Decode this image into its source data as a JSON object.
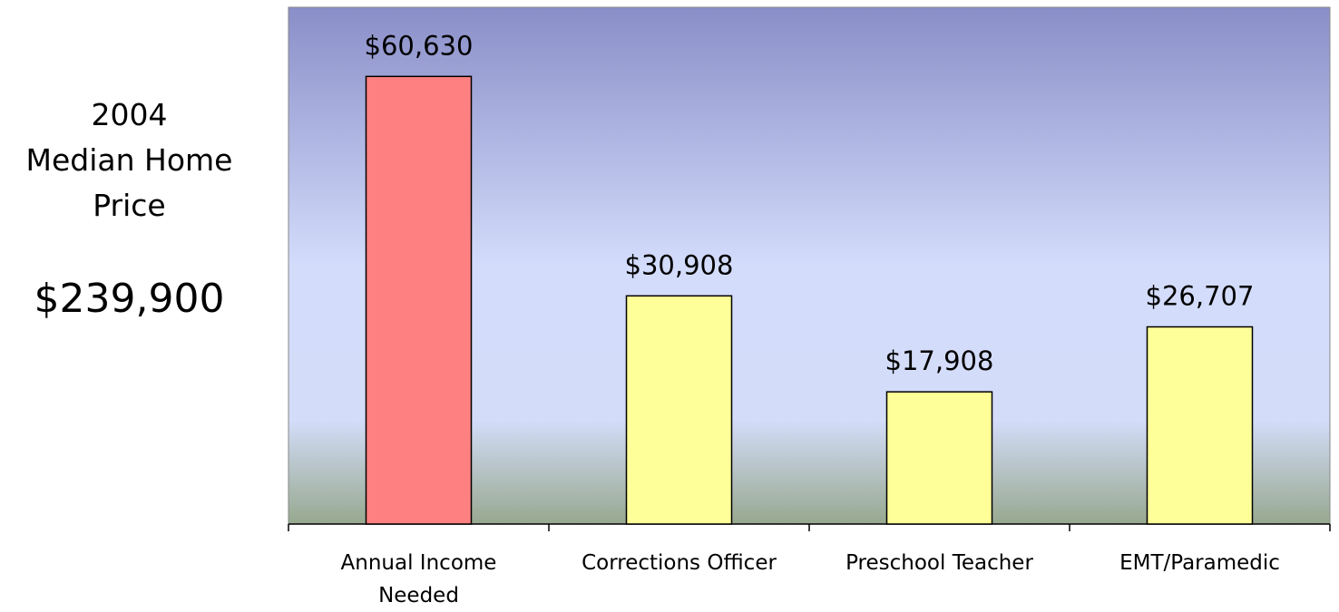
{
  "chart_data": {
    "type": "bar",
    "annotations": [
      "2004",
      "Median Home",
      "Price",
      "$239,900"
    ],
    "categories": [
      "Annual Income Needed",
      "Corrections Officer",
      "Preschool Teacher",
      "EMT/Paramedic"
    ],
    "values": [
      60630,
      30908,
      17908,
      26707
    ],
    "value_labels": [
      "$60,630",
      "$30,908",
      "$17,908",
      "$26,707"
    ],
    "colors": [
      "#ff8080",
      "#ffff99",
      "#ffff99",
      "#ffff99"
    ],
    "ylim": [
      0,
      70000
    ]
  }
}
